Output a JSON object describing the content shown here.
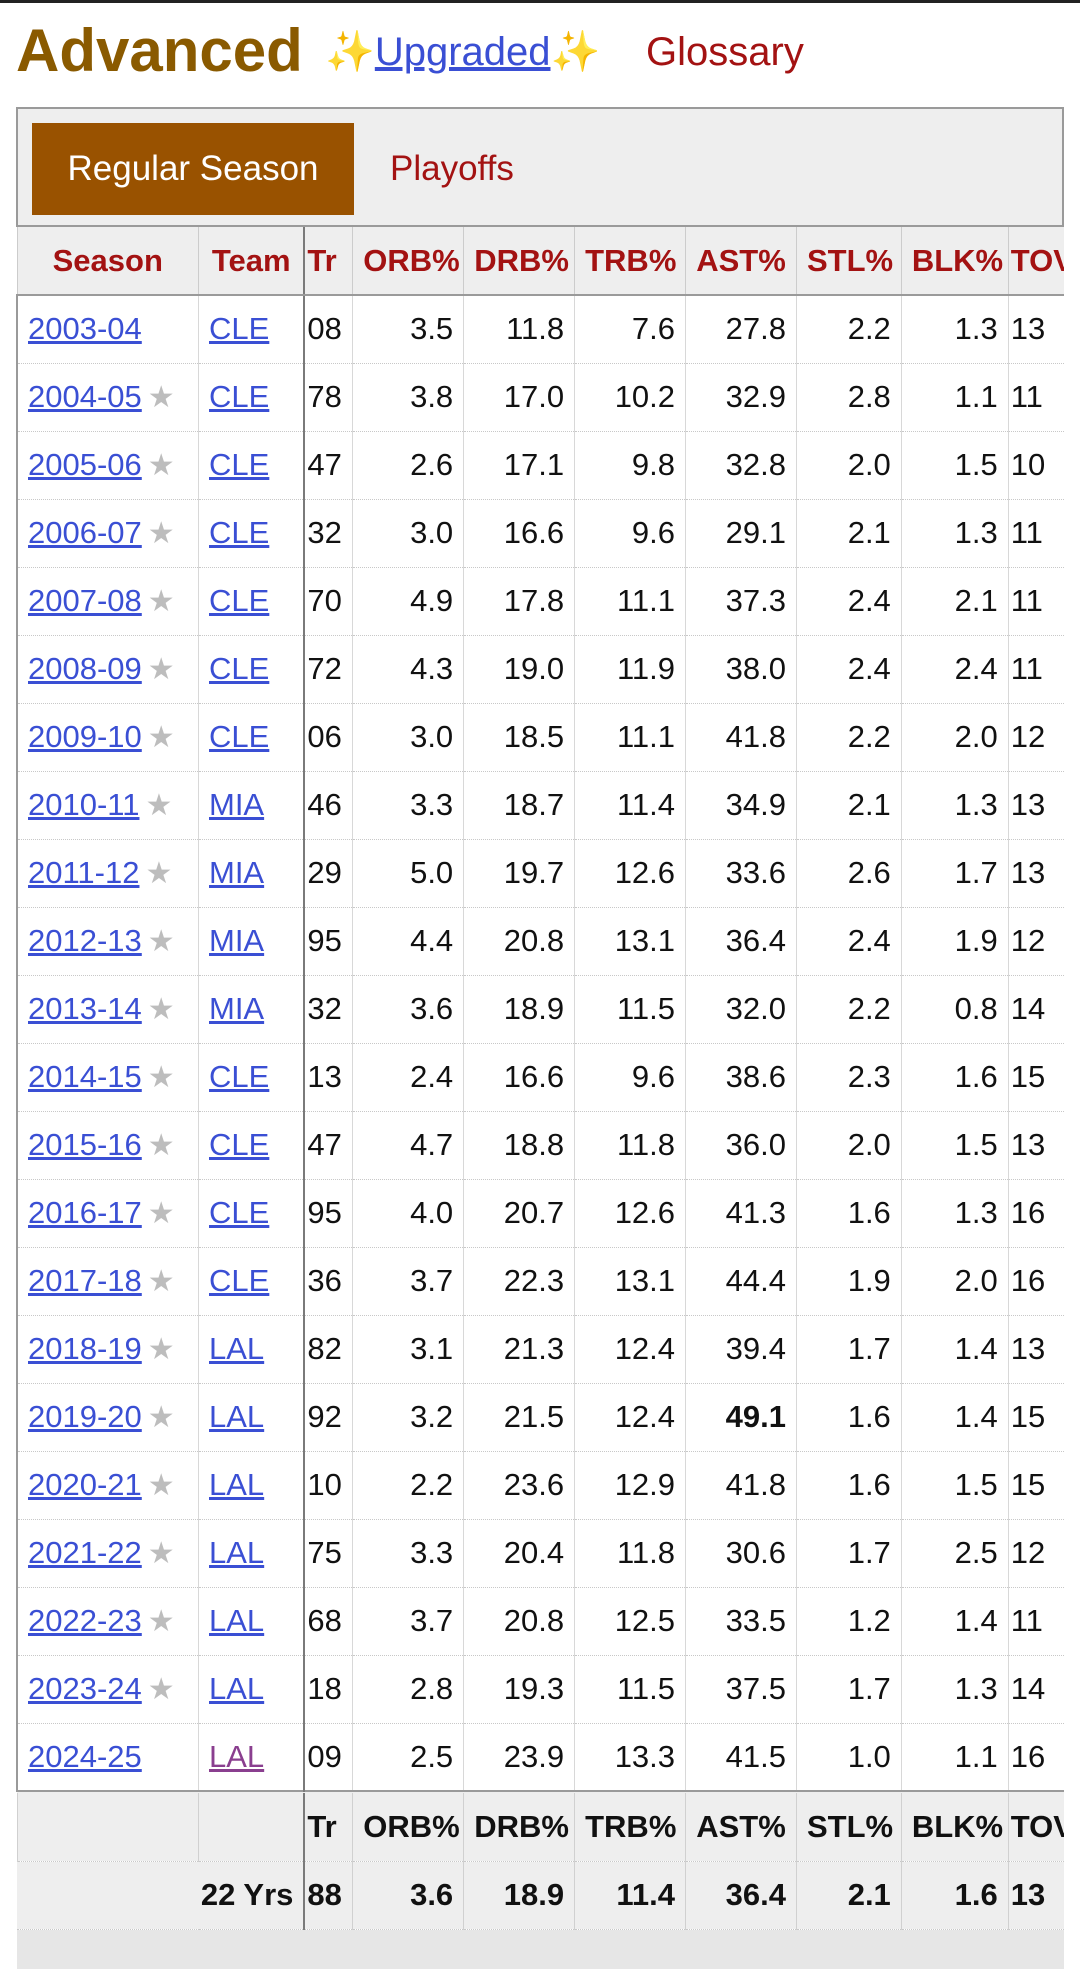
{
  "header": {
    "title": "Advanced",
    "upgraded_left": "✨",
    "upgraded_label": "Upgraded",
    "upgraded_right": "✨",
    "glossary_label": "Glossary"
  },
  "tabs": {
    "regular": "Regular Season",
    "playoffs": "Playoffs"
  },
  "columns": {
    "season": "Season",
    "team": "Team",
    "tr": "Tr",
    "orb": "ORB%",
    "drb": "DRB%",
    "trb": "TRB%",
    "ast": "AST%",
    "stl": "STL%",
    "blk": "BLK%",
    "tov": "TOV"
  },
  "rows": [
    {
      "season": "2003-04",
      "star": "",
      "team": "CLE",
      "tr": "08",
      "orb": "3.5",
      "drb": "11.8",
      "trb": "7.6",
      "ast": "27.8",
      "stl": "2.2",
      "blk": "1.3",
      "tov": "13"
    },
    {
      "season": "2004-05",
      "star": "★",
      "team": "CLE",
      "tr": "78",
      "orb": "3.8",
      "drb": "17.0",
      "trb": "10.2",
      "ast": "32.9",
      "stl": "2.8",
      "blk": "1.1",
      "tov": "11"
    },
    {
      "season": "2005-06",
      "star": "★",
      "team": "CLE",
      "tr": "47",
      "orb": "2.6",
      "drb": "17.1",
      "trb": "9.8",
      "ast": "32.8",
      "stl": "2.0",
      "blk": "1.5",
      "tov": "10"
    },
    {
      "season": "2006-07",
      "star": "★",
      "team": "CLE",
      "tr": "32",
      "orb": "3.0",
      "drb": "16.6",
      "trb": "9.6",
      "ast": "29.1",
      "stl": "2.1",
      "blk": "1.3",
      "tov": "11"
    },
    {
      "season": "2007-08",
      "star": "★",
      "team": "CLE",
      "tr": "70",
      "orb": "4.9",
      "drb": "17.8",
      "trb": "11.1",
      "ast": "37.3",
      "stl": "2.4",
      "blk": "2.1",
      "tov": "11"
    },
    {
      "season": "2008-09",
      "star": "★",
      "team": "CLE",
      "tr": "72",
      "orb": "4.3",
      "drb": "19.0",
      "trb": "11.9",
      "ast": "38.0",
      "stl": "2.4",
      "blk": "2.4",
      "tov": "11"
    },
    {
      "season": "2009-10",
      "star": "★",
      "team": "CLE",
      "tr": "06",
      "orb": "3.0",
      "drb": "18.5",
      "trb": "11.1",
      "ast": "41.8",
      "stl": "2.2",
      "blk": "2.0",
      "tov": "12"
    },
    {
      "season": "2010-11",
      "star": "★",
      "team": "MIA",
      "tr": "46",
      "orb": "3.3",
      "drb": "18.7",
      "trb": "11.4",
      "ast": "34.9",
      "stl": "2.1",
      "blk": "1.3",
      "tov": "13"
    },
    {
      "season": "2011-12",
      "star": "★",
      "team": "MIA",
      "tr": "29",
      "orb": "5.0",
      "drb": "19.7",
      "trb": "12.6",
      "ast": "33.6",
      "stl": "2.6",
      "blk": "1.7",
      "tov": "13"
    },
    {
      "season": "2012-13",
      "star": "★",
      "team": "MIA",
      "tr": "95",
      "orb": "4.4",
      "drb": "20.8",
      "trb": "13.1",
      "ast": "36.4",
      "stl": "2.4",
      "blk": "1.9",
      "tov": "12"
    },
    {
      "season": "2013-14",
      "star": "★",
      "team": "MIA",
      "tr": "32",
      "orb": "3.6",
      "drb": "18.9",
      "trb": "11.5",
      "ast": "32.0",
      "stl": "2.2",
      "blk": "0.8",
      "tov": "14"
    },
    {
      "season": "2014-15",
      "star": "★",
      "team": "CLE",
      "tr": "13",
      "orb": "2.4",
      "drb": "16.6",
      "trb": "9.6",
      "ast": "38.6",
      "stl": "2.3",
      "blk": "1.6",
      "tov": "15"
    },
    {
      "season": "2015-16",
      "star": "★",
      "team": "CLE",
      "tr": "47",
      "orb": "4.7",
      "drb": "18.8",
      "trb": "11.8",
      "ast": "36.0",
      "stl": "2.0",
      "blk": "1.5",
      "tov": "13"
    },
    {
      "season": "2016-17",
      "star": "★",
      "team": "CLE",
      "tr": "95",
      "orb": "4.0",
      "drb": "20.7",
      "trb": "12.6",
      "ast": "41.3",
      "stl": "1.6",
      "blk": "1.3",
      "tov": "16"
    },
    {
      "season": "2017-18",
      "star": "★",
      "team": "CLE",
      "tr": "36",
      "orb": "3.7",
      "drb": "22.3",
      "trb": "13.1",
      "ast": "44.4",
      "stl": "1.9",
      "blk": "2.0",
      "tov": "16"
    },
    {
      "season": "2018-19",
      "star": "★",
      "team": "LAL",
      "tr": "82",
      "orb": "3.1",
      "drb": "21.3",
      "trb": "12.4",
      "ast": "39.4",
      "stl": "1.7",
      "blk": "1.4",
      "tov": "13"
    },
    {
      "season": "2019-20",
      "star": "★",
      "team": "LAL",
      "tr": "92",
      "orb": "3.2",
      "drb": "21.5",
      "trb": "12.4",
      "ast": "49.1",
      "ast_bold": true,
      "stl": "1.6",
      "blk": "1.4",
      "tov": "15"
    },
    {
      "season": "2020-21",
      "star": "★",
      "team": "LAL",
      "tr": "10",
      "orb": "2.2",
      "drb": "23.6",
      "trb": "12.9",
      "ast": "41.8",
      "stl": "1.6",
      "blk": "1.5",
      "tov": "15"
    },
    {
      "season": "2021-22",
      "star": "★",
      "team": "LAL",
      "tr": "75",
      "orb": "3.3",
      "drb": "20.4",
      "trb": "11.8",
      "ast": "30.6",
      "stl": "1.7",
      "blk": "2.5",
      "tov": "12"
    },
    {
      "season": "2022-23",
      "star": "★",
      "team": "LAL",
      "tr": "68",
      "orb": "3.7",
      "drb": "20.8",
      "trb": "12.5",
      "ast": "33.5",
      "stl": "1.2",
      "blk": "1.4",
      "tov": "11"
    },
    {
      "season": "2023-24",
      "star": "★",
      "team": "LAL",
      "tr": "18",
      "orb": "2.8",
      "drb": "19.3",
      "trb": "11.5",
      "ast": "37.5",
      "stl": "1.7",
      "blk": "1.3",
      "tov": "14"
    },
    {
      "season": "2024-25",
      "star": "",
      "team": "LAL",
      "team_visited": true,
      "tr": "09",
      "orb": "2.5",
      "drb": "23.9",
      "trb": "13.3",
      "ast": "41.5",
      "stl": "1.0",
      "blk": "1.1",
      "tov": "16"
    }
  ],
  "footer": {
    "career_label": "22 Yrs",
    "tr": "88",
    "orb": "3.6",
    "drb": "18.9",
    "trb": "11.4",
    "ast": "36.4",
    "stl": "2.1",
    "blk": "1.6",
    "tov": "13"
  },
  "colors": {
    "title_brown": "#8a5a00",
    "tab_active_bg": "#995200",
    "header_red": "#a31212",
    "link_blue": "#3a4fd4",
    "visited_purple": "#8a3f8f"
  }
}
